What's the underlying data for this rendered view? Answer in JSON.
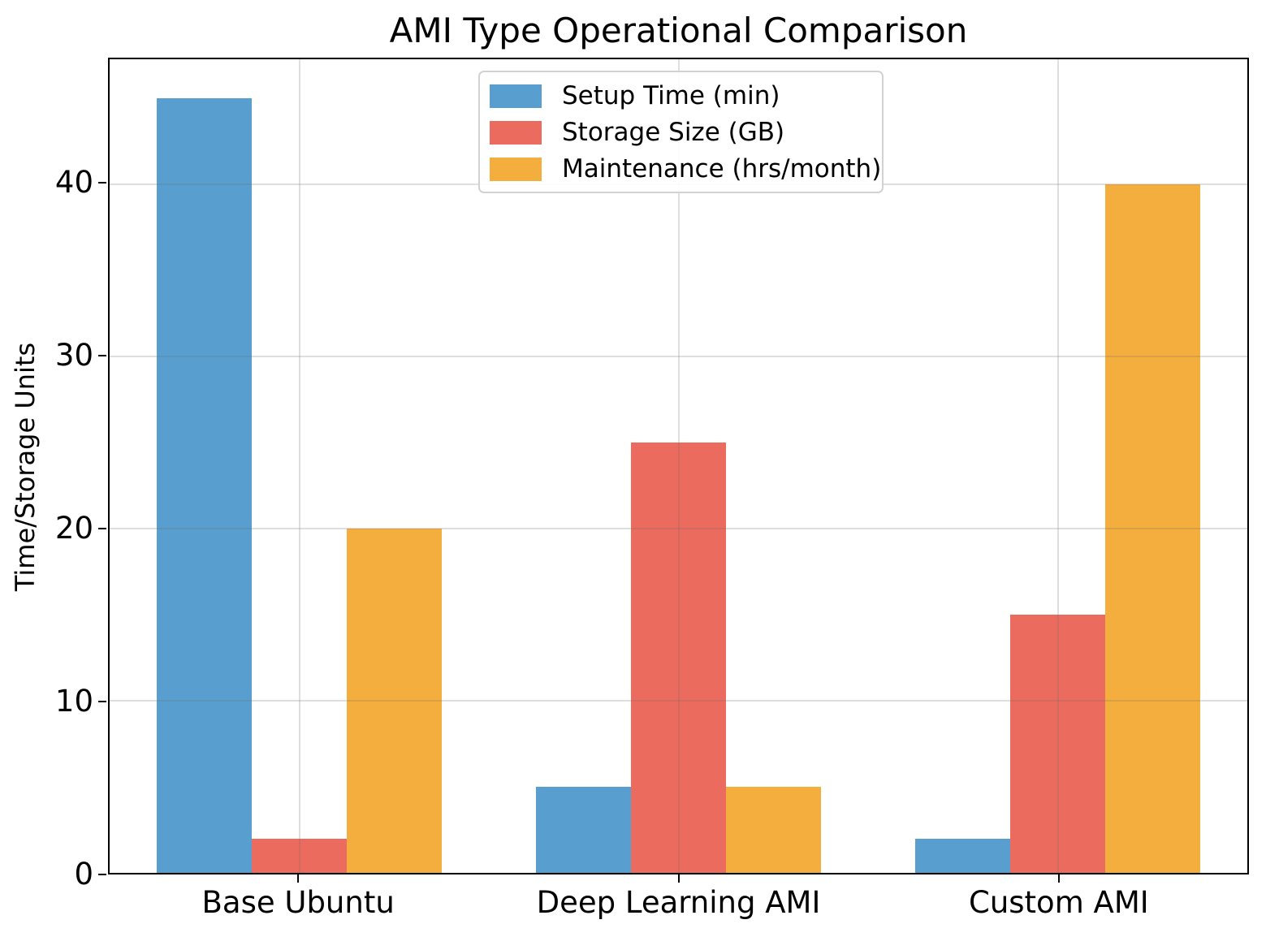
{
  "title": "AMI Type Operational Comparison",
  "chart_data": {
    "type": "bar",
    "title": "AMI Type Operational Comparison",
    "categories": [
      "Base Ubuntu",
      "Deep Learning AMI",
      "Custom AMI"
    ],
    "series": [
      {
        "name": "Setup Time (min)",
        "color": "#589ECE",
        "values": [
          45,
          5,
          2
        ]
      },
      {
        "name": "Storage Size (GB)",
        "color": "#EC6B5F",
        "values": [
          2,
          25,
          15
        ]
      },
      {
        "name": "Maintenance (hrs/month)",
        "color": "#F4AE3E",
        "values": [
          20,
          5,
          40
        ]
      }
    ],
    "xlabel": "",
    "ylabel": "Time/Storage Units",
    "yticks": [
      0,
      10,
      20,
      30,
      40
    ],
    "ylim": [
      0,
      47.25
    ],
    "grid": true,
    "grid_color": "rgba(110,110,110,0.22)",
    "axis_color": "#000000",
    "legend_position": "upper center"
  }
}
